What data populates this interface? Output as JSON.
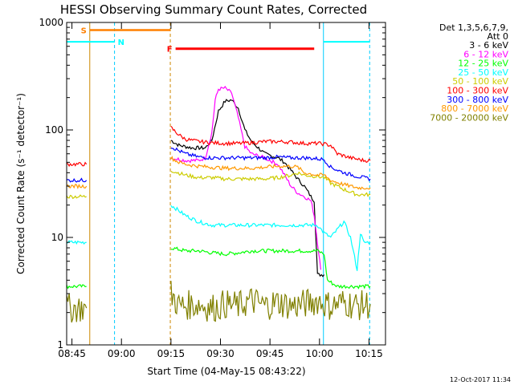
{
  "chart_data": {
    "type": "line",
    "title": "HESSI Observing Summary Count Rates, Corrected",
    "xlabel": "Start Time (04-May-15 08:43:22)",
    "ylabel": "Corrected Count Rate (s⁻¹ detector⁻¹)",
    "x_unit": "minutes after 08:43:22",
    "xlim": [
      0,
      96.6
    ],
    "ylim": [
      1,
      1000
    ],
    "yscale": "log",
    "xticks": [
      {
        "x": 1.6,
        "label": "08:45"
      },
      {
        "x": 16.6,
        "label": "09:00"
      },
      {
        "x": 31.6,
        "label": "09:15"
      },
      {
        "x": 46.6,
        "label": "09:30"
      },
      {
        "x": 61.6,
        "label": "09:45"
      },
      {
        "x": 76.6,
        "label": "10:00"
      },
      {
        "x": 91.6,
        "label": "10:15"
      }
    ],
    "yticks": [
      {
        "y": 1,
        "label": "1"
      },
      {
        "y": 10,
        "label": "10"
      },
      {
        "y": 100,
        "label": "100"
      },
      {
        "y": 1000,
        "label": "1000"
      }
    ],
    "legend": {
      "title_lines": [
        "Det 1,3,5,6,7,9,",
        "Att 0"
      ],
      "placement": "right"
    },
    "series": [
      {
        "name": "3 - 6 keV",
        "color": "#000000",
        "segments": [
          [
            [
              31.6,
              80
            ],
            [
              34,
              72
            ],
            [
              38,
              68
            ],
            [
              42,
              68
            ],
            [
              44,
              80
            ],
            [
              46,
              150
            ],
            [
              48,
              185
            ],
            [
              50,
              190
            ],
            [
              52,
              160
            ],
            [
              54,
              100
            ],
            [
              56,
              78
            ],
            [
              60,
              60
            ],
            [
              64,
              55
            ],
            [
              66,
              50
            ],
            [
              68,
              42
            ],
            [
              70,
              35
            ],
            [
              72,
              30
            ],
            [
              74,
              24
            ],
            [
              75,
              22
            ],
            [
              76,
              4.5
            ],
            [
              78,
              4.5
            ]
          ]
        ]
      },
      {
        "name": "6 - 12 keV",
        "color": "#ff00ff",
        "segments": [
          [
            [
              31.6,
              55
            ],
            [
              36,
              52
            ],
            [
              40,
              52
            ],
            [
              42,
              55
            ],
            [
              44,
              95
            ],
            [
              45,
              190
            ],
            [
              46,
              240
            ],
            [
              48,
              245
            ],
            [
              50,
              220
            ],
            [
              52,
              130
            ],
            [
              54,
              70
            ],
            [
              56,
              60
            ],
            [
              60,
              55
            ],
            [
              64,
              48
            ],
            [
              66,
              38
            ],
            [
              68,
              30
            ],
            [
              70,
              26
            ],
            [
              72,
              24
            ],
            [
              74,
              22
            ],
            [
              75,
              16
            ],
            [
              76,
              9
            ],
            [
              77,
              5
            ]
          ]
        ]
      },
      {
        "name": "12 - 25 keV",
        "color": "#00ff00",
        "segments": [
          [
            [
              0,
              3.5
            ],
            [
              6,
              3.5
            ]
          ],
          [
            [
              31.6,
              8
            ],
            [
              36,
              7.5
            ],
            [
              40,
              7.5
            ],
            [
              44,
              7.2
            ],
            [
              48,
              7.0
            ],
            [
              52,
              7.2
            ],
            [
              56,
              7.5
            ],
            [
              60,
              7.5
            ],
            [
              64,
              7.5
            ],
            [
              68,
              7.5
            ],
            [
              72,
              7.5
            ],
            [
              76,
              7.5
            ],
            [
              78,
              7
            ],
            [
              79,
              4
            ],
            [
              82,
              3.5
            ],
            [
              87,
              3.5
            ],
            [
              92,
              3.5
            ]
          ]
        ]
      },
      {
        "name": "25 - 50 keV",
        "color": "#00ffff",
        "segments": [
          [
            [
              0,
              9
            ],
            [
              6,
              9
            ]
          ],
          [
            [
              31.6,
              20
            ],
            [
              36,
              16
            ],
            [
              40,
              14
            ],
            [
              44,
              13
            ],
            [
              48,
              13
            ],
            [
              52,
              13
            ],
            [
              56,
              13
            ],
            [
              60,
              13
            ],
            [
              64,
              13
            ],
            [
              68,
              13
            ],
            [
              72,
              13
            ],
            [
              76,
              13
            ],
            [
              78,
              11
            ],
            [
              80,
              10
            ],
            [
              84,
              14
            ],
            [
              86,
              10
            ],
            [
              88,
              5
            ],
            [
              89,
              11
            ],
            [
              90,
              9
            ],
            [
              92,
              9
            ]
          ]
        ]
      },
      {
        "name": "50 - 100 keV",
        "color": "#cccc00",
        "segments": [
          [
            [
              0,
              24
            ],
            [
              6,
              24
            ]
          ],
          [
            [
              31.6,
              42
            ],
            [
              36,
              38
            ],
            [
              40,
              36
            ],
            [
              44,
              36
            ],
            [
              48,
              35
            ],
            [
              52,
              35
            ],
            [
              56,
              35
            ],
            [
              60,
              35
            ],
            [
              64,
              36
            ],
            [
              68,
              38
            ],
            [
              70,
              40
            ],
            [
              72,
              38
            ],
            [
              76,
              37
            ],
            [
              78,
              36
            ],
            [
              80,
              32
            ],
            [
              84,
              28
            ],
            [
              88,
              25
            ],
            [
              92,
              25
            ]
          ]
        ]
      },
      {
        "name": "100 - 300 keV",
        "color": "#ff0000",
        "segments": [
          [
            [
              0,
              48
            ],
            [
              6,
              48
            ]
          ],
          [
            [
              31.6,
              105
            ],
            [
              34,
              90
            ],
            [
              36,
              82
            ],
            [
              40,
              78
            ],
            [
              44,
              76
            ],
            [
              48,
              75
            ],
            [
              52,
              75
            ],
            [
              56,
              76
            ],
            [
              60,
              78
            ],
            [
              64,
              78
            ],
            [
              68,
              77
            ],
            [
              72,
              75
            ],
            [
              76,
              75
            ],
            [
              78,
              74
            ],
            [
              80,
              72
            ],
            [
              82,
              60
            ],
            [
              86,
              55
            ],
            [
              90,
              52
            ],
            [
              92,
              52
            ]
          ]
        ]
      },
      {
        "name": "300 - 800 keV",
        "color": "#0000ff",
        "segments": [
          [
            [
              0,
              34
            ],
            [
              6,
              34
            ]
          ],
          [
            [
              31.6,
              70
            ],
            [
              34,
              64
            ],
            [
              36,
              60
            ],
            [
              40,
              56
            ],
            [
              44,
              55
            ],
            [
              48,
              55
            ],
            [
              52,
              55
            ],
            [
              56,
              55
            ],
            [
              60,
              55
            ],
            [
              64,
              56
            ],
            [
              68,
              55
            ],
            [
              72,
              55
            ],
            [
              76,
              54
            ],
            [
              78,
              53
            ],
            [
              80,
              45
            ],
            [
              84,
              40
            ],
            [
              88,
              37
            ],
            [
              92,
              35
            ]
          ]
        ]
      },
      {
        "name": "800 - 7000 keV",
        "color": "#ff9900",
        "segments": [
          [
            [
              0,
              30
            ],
            [
              6,
              30
            ]
          ],
          [
            [
              31.6,
              55
            ],
            [
              34,
              50
            ],
            [
              36,
              48
            ],
            [
              40,
              46
            ],
            [
              44,
              45
            ],
            [
              48,
              44
            ],
            [
              52,
              44
            ],
            [
              56,
              44
            ],
            [
              60,
              45
            ],
            [
              64,
              46
            ],
            [
              68,
              46
            ],
            [
              70,
              45
            ],
            [
              72,
              40
            ],
            [
              76,
              38
            ],
            [
              78,
              38
            ],
            [
              80,
              34
            ],
            [
              84,
              31
            ],
            [
              88,
              29
            ],
            [
              92,
              29
            ]
          ]
        ]
      },
      {
        "name": "7000 - 20000 keV",
        "color": "#808000",
        "segments": [
          [
            [
              0,
              2.2
            ],
            [
              6,
              2.2
            ]
          ],
          [
            [
              31.6,
              3
            ],
            [
              34,
              2.3
            ],
            [
              40,
              2.4
            ],
            [
              44,
              2.2
            ],
            [
              48,
              2.4
            ],
            [
              52,
              2.3
            ],
            [
              56,
              2.6
            ],
            [
              60,
              2.3
            ],
            [
              64,
              2.5
            ],
            [
              68,
              2.3
            ],
            [
              72,
              2.4
            ],
            [
              76,
              2.6
            ],
            [
              80,
              2.3
            ],
            [
              84,
              2.5
            ],
            [
              88,
              2.3
            ],
            [
              92,
              2.4
            ]
          ]
        ]
      }
    ],
    "vertical_markers": [
      {
        "x": 7.0,
        "color": "#cc8800",
        "style": "solid"
      },
      {
        "x": 31.4,
        "color": "#cc8800",
        "style": "dashed"
      },
      {
        "x": 14.5,
        "color": "#00ccff",
        "style": "dashed"
      },
      {
        "x": 77.8,
        "color": "#00ccff",
        "style": "solid"
      },
      {
        "x": 91.8,
        "color": "#00ccff",
        "style": "dashed"
      }
    ],
    "flag_bars": [
      {
        "label": "S",
        "color": "#ff8000",
        "x0": 7.0,
        "x1": 31.4,
        "y": 850,
        "label_side": "left",
        "width": 2.5
      },
      {
        "label": "N",
        "color": "#00ffff",
        "x0": 0,
        "x1": 14.5,
        "y": 660,
        "label_side": "right",
        "width": 2
      },
      {
        "label": "N",
        "color": "#00ffff",
        "x0": 77.8,
        "x1": 91.8,
        "y": 660,
        "label_side": "none",
        "width": 2
      },
      {
        "label": "F",
        "color": "#ff0000",
        "x0": 33.0,
        "x1": 75.0,
        "y": 570,
        "label_side": "left",
        "width": 3
      }
    ]
  },
  "footer": {
    "date": "12-Oct-2017 11:34"
  }
}
